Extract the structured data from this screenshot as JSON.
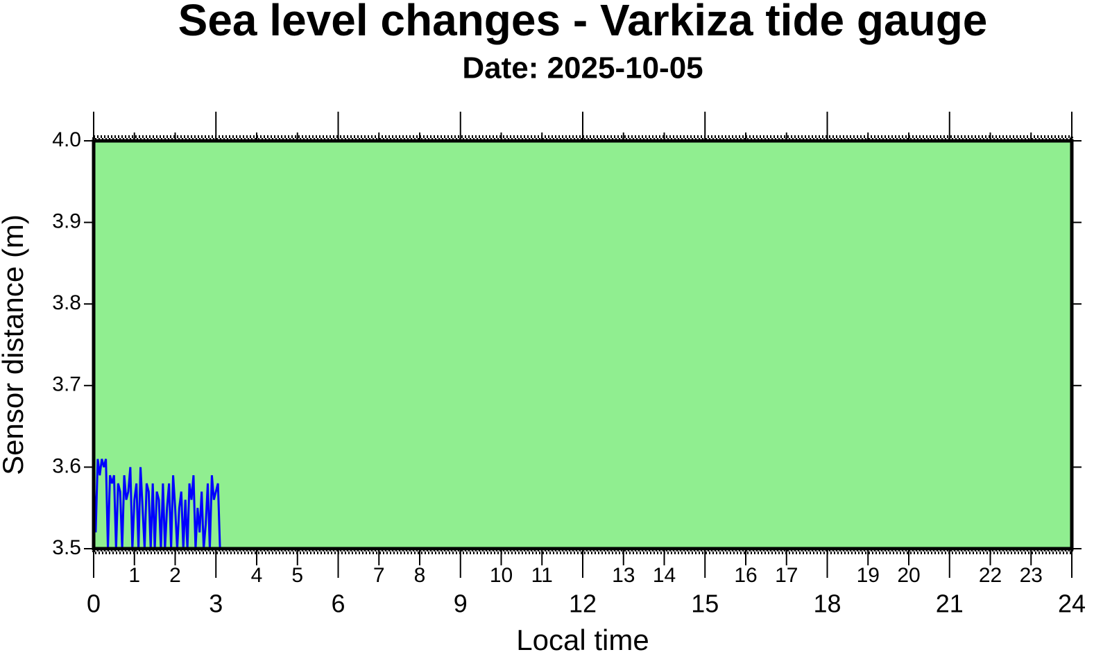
{
  "chart_data": {
    "type": "line",
    "title": "Sea level changes - Varkiza tide gauge",
    "subtitle": "Date: 2025-10-05",
    "xlabel": "Local time",
    "ylabel": "Sensor distance (m)",
    "x": [
      0,
      0.05,
      0.1,
      0.15,
      0.2,
      0.25,
      0.3,
      0.35,
      0.4,
      0.45,
      0.5,
      0.55,
      0.6,
      0.65,
      0.7,
      0.75,
      0.8,
      0.85,
      0.9,
      0.95,
      1,
      1.05,
      1.1,
      1.15,
      1.2,
      1.25,
      1.3,
      1.35,
      1.4,
      1.45,
      1.5,
      1.55,
      1.6,
      1.65,
      1.7,
      1.75,
      1.8,
      1.85,
      1.9,
      1.95,
      2,
      2.05,
      2.1,
      2.15,
      2.2,
      2.25,
      2.3,
      2.35,
      2.4,
      2.45,
      2.5,
      2.55,
      2.6,
      2.65,
      2.7,
      2.75,
      2.8,
      2.85,
      2.9,
      2.95,
      3,
      3.05,
      3.1
    ],
    "values": [
      3.6,
      3.52,
      3.61,
      3.59,
      3.61,
      3.6,
      3.61,
      3.5,
      3.59,
      3.58,
      3.59,
      3.5,
      3.58,
      3.57,
      3.5,
      3.59,
      3.56,
      3.57,
      3.6,
      3.5,
      3.56,
      3.58,
      3.5,
      3.6,
      3.55,
      3.5,
      3.58,
      3.57,
      3.5,
      3.58,
      3.5,
      3.57,
      3.56,
      3.5,
      3.58,
      3.5,
      3.55,
      3.58,
      3.5,
      3.59,
      3.55,
      3.5,
      3.55,
      3.57,
      3.5,
      3.56,
      3.5,
      3.58,
      3.56,
      3.59,
      3.5,
      3.55,
      3.52,
      3.57,
      3.5,
      3.53,
      3.58,
      3.5,
      3.59,
      3.56,
      3.57,
      3.58,
      3.5
    ],
    "color": "#0000ff",
    "background": "#90ee90",
    "xlim": [
      0,
      24
    ],
    "xticks": [
      0,
      1,
      2,
      3,
      4,
      5,
      6,
      7,
      8,
      9,
      10,
      11,
      12,
      13,
      14,
      15,
      16,
      17,
      18,
      19,
      20,
      21,
      22,
      23,
      24
    ],
    "ylim": [
      3.5,
      4.0
    ],
    "yticks": [
      3.5,
      3.6,
      3.7,
      3.8,
      3.9,
      {
        "value": 4.0,
        "label": "4.0"
      }
    ]
  }
}
